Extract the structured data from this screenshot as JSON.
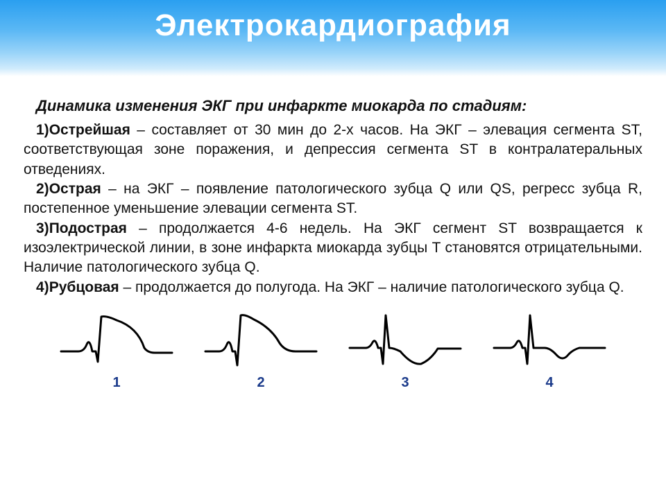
{
  "header": {
    "title": "Электрокардиография"
  },
  "subtitle": "Динамика изменения ЭКГ при инфаркте миокарда по стадиям:",
  "stages": [
    {
      "num": "1)",
      "name": "Острейшая",
      "text": " – составляет от 30 мин до 2-х часов. На ЭКГ – элевация сегмента ST, соответствующая зоне поражения, и депрессия сегмента ST в контралатеральных отведениях."
    },
    {
      "num": "2)",
      "name": "Острая",
      "text": " – на ЭКГ – появление патологического зубца Q или QS, регресс зубца R, постепенное уменьшение элевации сегмента ST."
    },
    {
      "num": "3)",
      "name": "Подострая",
      "text": " – продолжается 4-6 недель. На ЭКГ сегмент ST возвращается к изоэлектрической линии, в зоне инфаркта миокарда зубцы T становятся отрицательными. Наличие патологического зубца Q."
    },
    {
      "num": "4)",
      "name": "Рубцовая",
      "text": " – продолжается до полугода. На ЭКГ – наличие патологического зубца Q."
    }
  ],
  "ecg": {
    "stroke": "#000000",
    "stroke_width": 3,
    "label_color": "#1a3a8a",
    "width": 170,
    "height": 90,
    "paths": [
      "M5,60 L30,60 Q38,60 42,50 Q46,40 50,60 L55,60 L58,75 L63,10 Q70,8 85,15 Q115,25 125,55 Q130,62 140,62 L165,62",
      "M5,60 L25,60 Q32,60 36,50 Q40,40 44,60 L48,60 L51,80 L56,8 Q62,6 75,14 Q100,26 112,48 Q120,60 135,60 L165,60",
      "M5,55 L28,55 Q34,55 38,47 Q42,40 46,55 L50,55 L53,78 L57,8 L62,55 Q68,55 78,60 Q95,80 108,78 Q122,72 132,56 L165,56",
      "M5,55 L28,55 Q34,55 38,47 Q42,40 46,55 L50,55 L53,78 L57,8 L62,55 L78,55 Q86,55 95,65 Q104,75 112,65 Q118,58 128,55 L165,55"
    ],
    "labels": [
      "1",
      "2",
      "3",
      "4"
    ]
  }
}
